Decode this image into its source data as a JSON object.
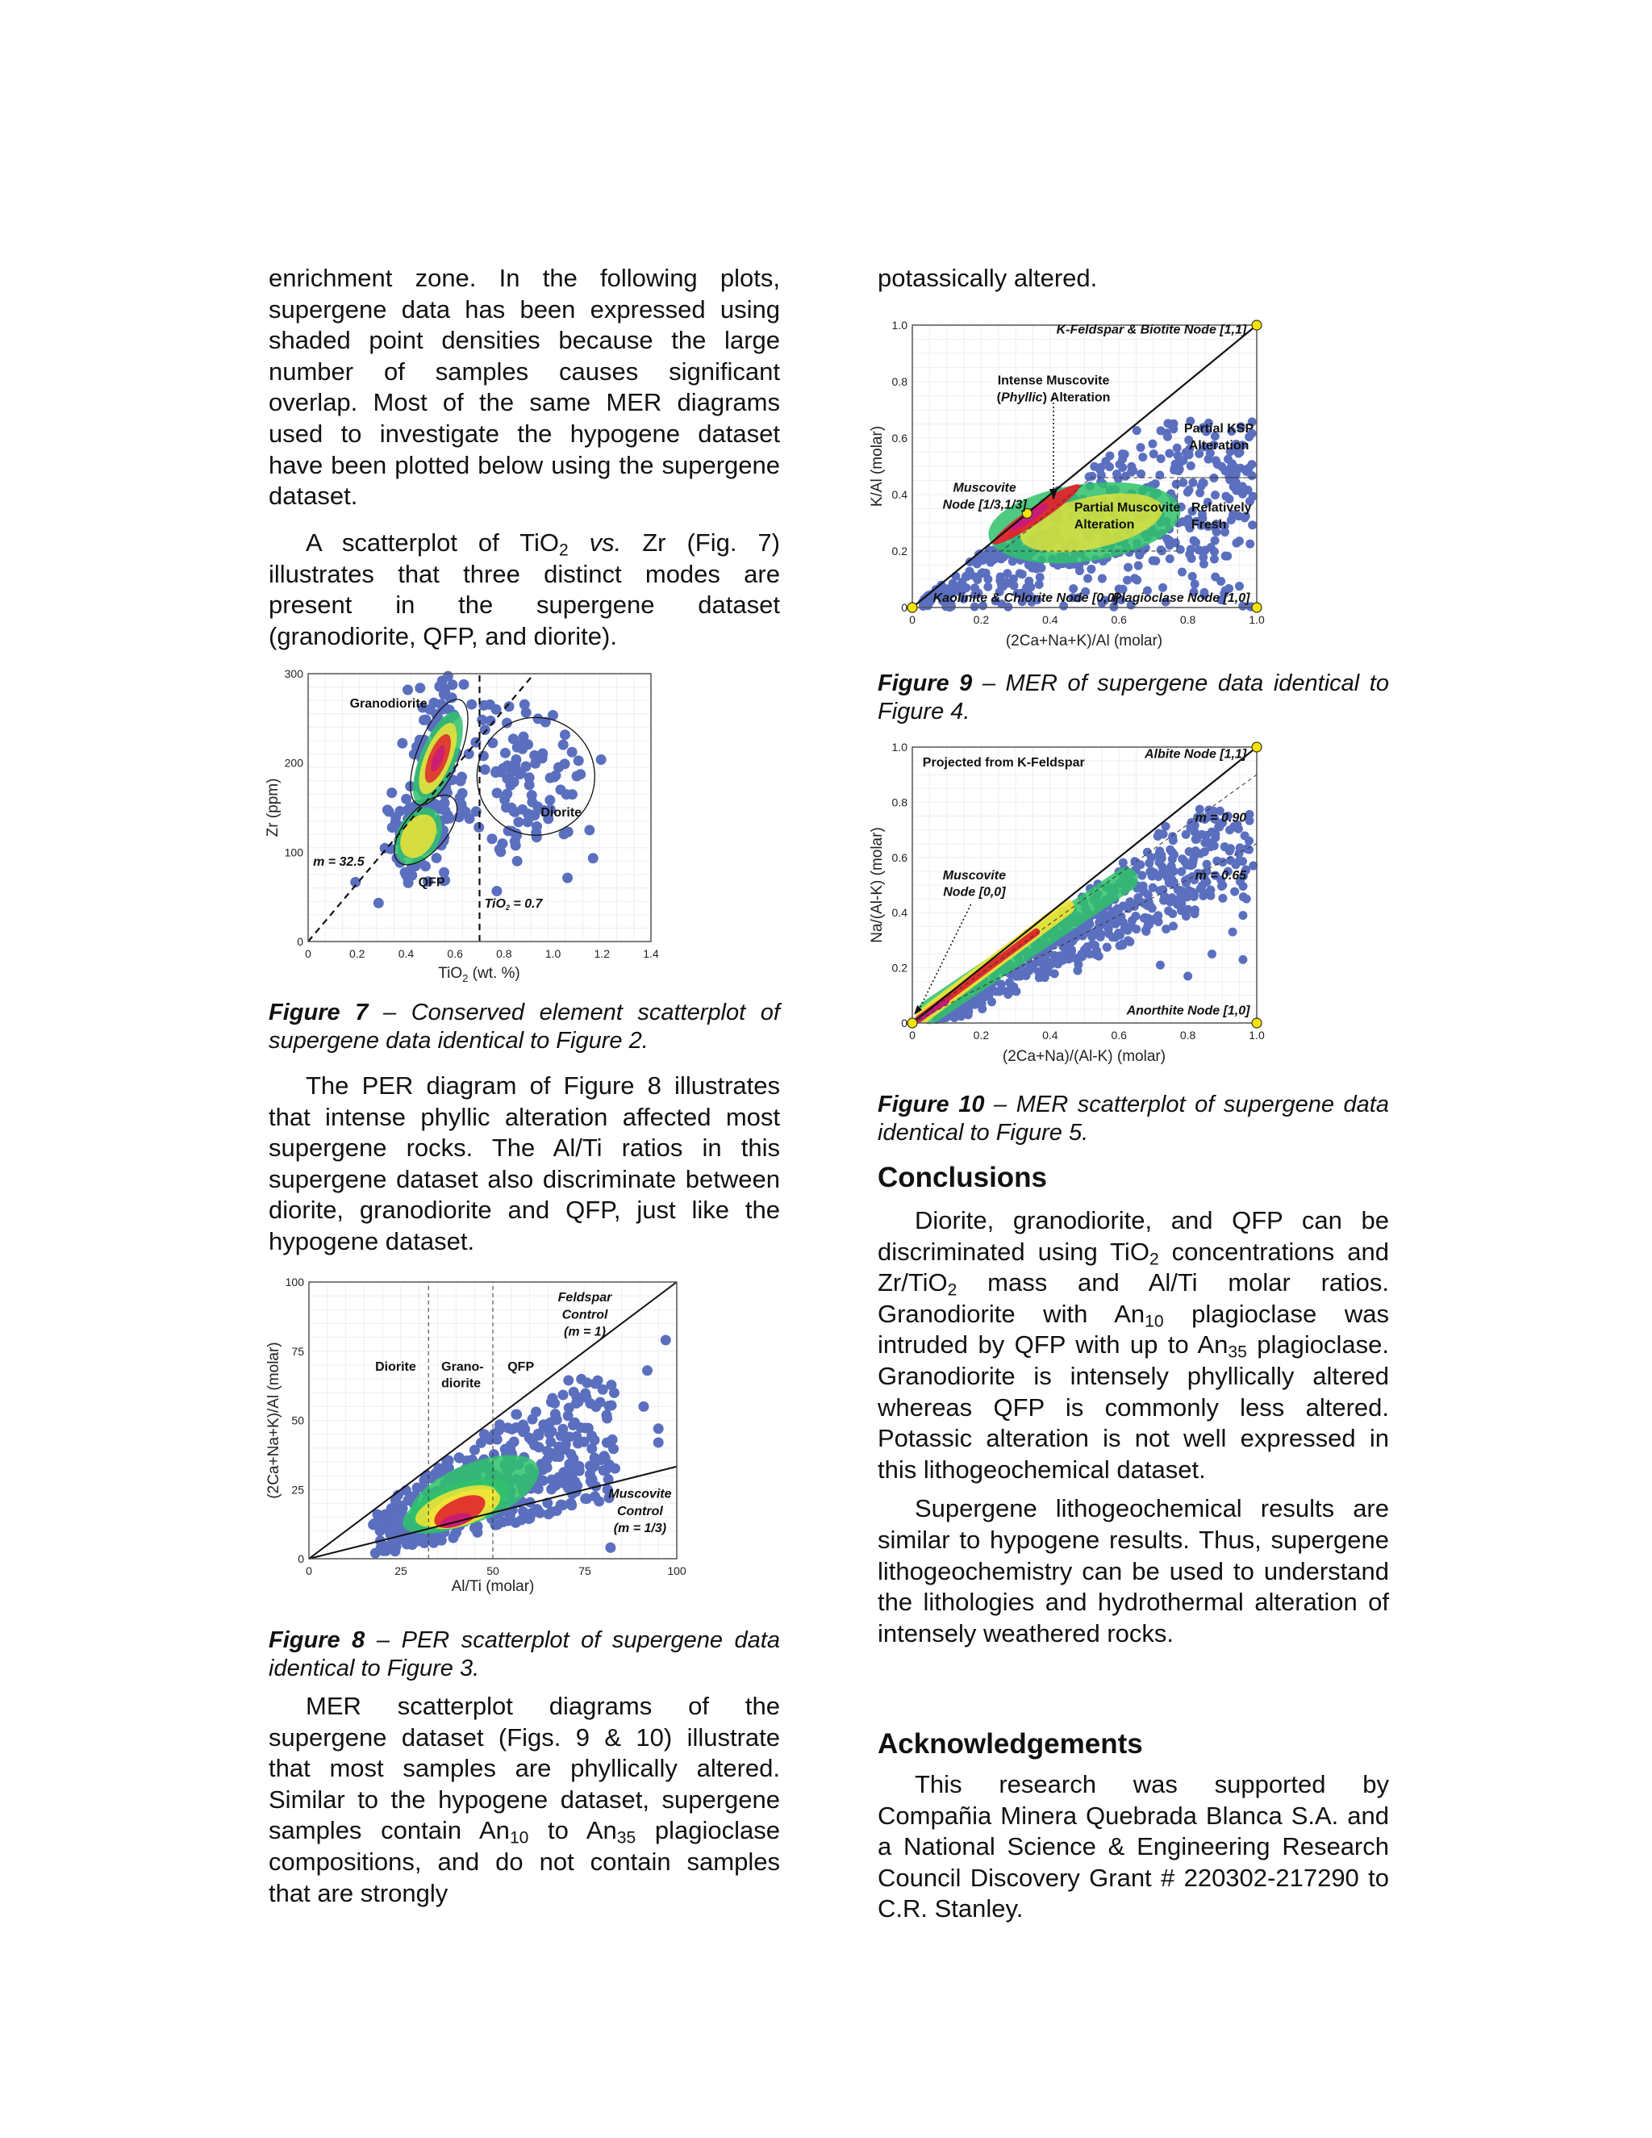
{
  "left_column": {
    "p1": [
      "enrichment zone. In the following plots, supergene data has been expressed using shaded point densities because the large number of samples causes significant overlap. Most of the same MER diagrams used to investigate the hypogene dataset have been plotted below using the supergene dataset."
    ],
    "p2": [
      "A scatterplot of TiO",
      {
        "sub": "2"
      },
      " ",
      {
        "i": "vs."
      },
      " Zr (Fig. 7) illustrates that three distinct modes are present in the supergene dataset (granodiorite, QFP, and diorite)."
    ],
    "fig7_caption": {
      "label": "Figure 7",
      "text": " – Conserved element scatterplot of supergene data identical to Figure 2."
    },
    "p3": [
      "The PER diagram of Figure 8 illustrates that intense phyllic alteration affected most supergene rocks. The Al/Ti ratios in this supergene dataset also discriminate between diorite, granodiorite and QFP, just like the hypogene dataset."
    ],
    "fig8_caption": {
      "label": "Figure 8",
      "text": " – PER scatterplot of supergene data identical to Figure 3."
    },
    "p4": [
      "MER scatterplot diagrams of the supergene dataset (Figs. 9 & 10) illustrate that most samples are phyllically altered. Similar to the hypogene dataset, supergene samples contain An",
      {
        "sub": "10"
      },
      " to An",
      {
        "sub": "35"
      },
      " plagioclase compositions, and do not contain samples that are strongly"
    ]
  },
  "right_column": {
    "p0": [
      "potassically altered."
    ],
    "fig9_caption": {
      "label": "Figure 9",
      "text": " – MER of supergene data identical to Figure 4."
    },
    "fig10_caption": {
      "label": "Figure 10",
      "text": " – MER scatterplot of supergene data identical to Figure 5."
    },
    "conclusions_heading": "Conclusions",
    "c1": [
      "Diorite, granodiorite, and QFP can be discriminated using TiO",
      {
        "sub": "2"
      },
      " concentrations and Zr/TiO",
      {
        "sub": "2"
      },
      " mass and Al/Ti molar ratios. Granodiorite with An",
      {
        "sub": "10"
      },
      " plagioclase was intruded by QFP with up to An",
      {
        "sub": "35"
      },
      " plagioclase. Granodiorite is intensely phyllically altered whereas QFP is commonly less altered. Potassic alteration is not well expressed in this lithogeochemical dataset."
    ],
    "c2": [
      "Supergene lithogeochemical results are similar to hypogene results. Thus, supergene lithogeochemistry can be used to understand the lithologies and hydrothermal alteration of intensely weathered rocks."
    ],
    "ack_heading": "Acknowledgements",
    "a1": [
      "This research was supported by Compañia Minera Quebrada Blanca S.A. and a National Science & Engineering Research Council Discovery Grant # 220302-217290 to C.R. Stanley."
    ]
  },
  "colors": {
    "low": "#5b6fbf",
    "mid": "#2fc26a",
    "high": "#f2e436",
    "peak": "#e0242c",
    "max": "#c81a7a",
    "node": "#f5e400"
  },
  "chart_data": [
    {
      "id": "fig7",
      "type": "scatter",
      "style": "point-density",
      "xlabel": "TiO2 (wt. %)",
      "xlabel_main": "TiO",
      "xlabel_sub": "2",
      "xlabel_rest": " (wt. %)",
      "ylabel": "Zr (ppm)",
      "xlim": [
        0,
        1.4
      ],
      "ylim": [
        0,
        300
      ],
      "xticks": [
        "0",
        "0.2",
        "0.4",
        "0.6",
        "0.8",
        "1.0",
        "1.2",
        "1.4"
      ],
      "xtick_values": [
        0,
        0.2,
        0.4,
        0.6,
        0.8,
        1.0,
        1.2,
        1.4
      ],
      "yticks": [
        "0",
        "100",
        "200",
        "300"
      ],
      "ytick_values": [
        0,
        100,
        200,
        300
      ],
      "grid": true,
      "reference_lines": [
        {
          "type": "line",
          "slope": 32.5,
          "intercept": 0,
          "style": "dashed",
          "label": "m = 32.5"
        },
        {
          "type": "vertical",
          "x": 0.7,
          "style": "dashed",
          "label": "TiO2 = 0.7"
        }
      ],
      "groups": [
        {
          "label": "Granodiorite",
          "center": [
            0.52,
            205
          ],
          "spread": [
            0.06,
            45
          ],
          "density": "peak"
        },
        {
          "label": "QFP",
          "center": [
            0.45,
            120
          ],
          "spread": [
            0.06,
            22
          ],
          "density": "high"
        },
        {
          "label": "Diorite",
          "center": [
            0.87,
            175
          ],
          "spread": [
            0.17,
            45
          ],
          "density": "low"
        }
      ],
      "labels": {
        "granodiorite": "Granodiorite",
        "qfp": "QFP",
        "diorite": "Diorite",
        "slope": "m = 32.5",
        "tio2_main": "TiO",
        "tio2_sub": "2",
        "tio2_rest": " = 0.7"
      }
    },
    {
      "id": "fig8",
      "type": "scatter",
      "style": "point-density",
      "xlabel": "Al/Ti (molar)",
      "ylabel": "(2Ca+Na+K)/Al (molar)",
      "xlim": [
        0,
        100
      ],
      "ylim": [
        0,
        100
      ],
      "xticks": [
        "0",
        "25",
        "50",
        "75",
        "100"
      ],
      "xtick_values": [
        0,
        25,
        50,
        75,
        100
      ],
      "yticks": [
        "0",
        "25",
        "50",
        "75",
        "100"
      ],
      "ytick_values": [
        0,
        25,
        50,
        75,
        100
      ],
      "grid": true,
      "reference_lines": [
        {
          "type": "line",
          "slope": 1,
          "intercept": 0,
          "style": "solid",
          "label": "Feldspar Control (m = 1)"
        },
        {
          "type": "line",
          "slope": 0.3333,
          "intercept": 0,
          "style": "solid",
          "label": "Muscovite Control (m = 1/3)"
        },
        {
          "type": "vertical",
          "x": 32.5,
          "style": "dashed"
        },
        {
          "type": "vertical",
          "x": 50,
          "style": "dashed"
        }
      ],
      "groups": [
        {
          "center": [
            42,
            18
          ],
          "spread": [
            8,
            6
          ],
          "density": "peak"
        },
        {
          "center": [
            55,
            28
          ],
          "spread": [
            16,
            12
          ],
          "density": "low"
        }
      ],
      "labels": {
        "diorite": "Diorite",
        "grano1": "Grano-",
        "grano2": "diorite",
        "qfp": "QFP",
        "feld1": "Feldspar",
        "feld2": "Control",
        "feld3": "(m = 1)",
        "musc1": "Muscovite",
        "musc2": "Control",
        "musc3": "(m = 1/3)"
      }
    },
    {
      "id": "fig9",
      "type": "scatter",
      "style": "point-density",
      "xlabel": "(2Ca+Na+K)/Al (molar)",
      "ylabel": "K/Al (molar)",
      "xlim": [
        0,
        1
      ],
      "ylim": [
        0,
        1
      ],
      "xticks": [
        "0",
        "0.2",
        "0.4",
        "0.6",
        "0.8",
        "1.0"
      ],
      "xtick_values": [
        0,
        0.2,
        0.4,
        0.6,
        0.8,
        1.0
      ],
      "yticks": [
        "0",
        "0.2",
        "0.4",
        "0.6",
        "0.8",
        "1.0"
      ],
      "ytick_values": [
        0,
        0.2,
        0.4,
        0.6,
        0.8,
        1.0
      ],
      "grid": true,
      "nodes": [
        {
          "label": "K-Feldspar & Biotite Node [1,1]",
          "x": 1,
          "y": 1
        },
        {
          "label": "Muscovite Node [1/3,1/3]",
          "x": 0.3333,
          "y": 0.3333
        },
        {
          "label": "Kaolinite & Chlorite Node [0,0]",
          "x": 0,
          "y": 0
        },
        {
          "label": "Plagioclase Node [1,0]",
          "x": 1,
          "y": 0
        }
      ],
      "groups": [
        {
          "center": [
            0.37,
            0.33
          ],
          "spread": [
            0.06,
            0.05
          ],
          "density": "peak"
        },
        {
          "center": [
            0.55,
            0.3
          ],
          "spread": [
            0.14,
            0.08
          ],
          "density": "high"
        },
        {
          "center": [
            0.7,
            0.3
          ],
          "spread": [
            0.16,
            0.13
          ],
          "density": "low"
        }
      ],
      "labels": {
        "kfs": "K-Feldspar & Biotite Node [1,1]",
        "intense1": "Intense Muscovite",
        "intense2a": "(",
        "intense2i": "Phyllic",
        "intense2b": ") Alteration",
        "musc1": "Muscovite",
        "musc2": "Node [1/3,1/3]",
        "partial_ksp1": "Partial KSP",
        "partial_ksp2": "Alteration",
        "partial_musc1": "Partial Muscovite",
        "partial_musc2": "Alteration",
        "fresh1": "Relatively",
        "fresh2": "Fresh",
        "kaol": "Kaolinite & Chlorite Node [0,0]",
        "plag": "Plagioclase Node [1,0]"
      }
    },
    {
      "id": "fig10",
      "type": "scatter",
      "style": "point-density",
      "xlabel": "(2Ca+Na)/(Al-K) (molar)",
      "ylabel": "Na/(Al-K) (molar)",
      "xlim": [
        0,
        1
      ],
      "ylim": [
        0,
        1
      ],
      "xticks": [
        "0",
        "0.2",
        "0.4",
        "0.6",
        "0.8",
        "1.0"
      ],
      "xtick_values": [
        0,
        0.2,
        0.4,
        0.6,
        0.8,
        1.0
      ],
      "yticks": [
        "0",
        "0.2",
        "0.4",
        "0.6",
        "0.8",
        "1.0"
      ],
      "ytick_values": [
        0,
        0.2,
        0.4,
        0.6,
        0.8,
        1.0
      ],
      "grid": true,
      "reference_lines": [
        {
          "type": "line",
          "slope": 1,
          "intercept": 0,
          "style": "solid"
        },
        {
          "type": "line",
          "slope": 0.9,
          "intercept": 0,
          "style": "dashed",
          "label": "m = 0.90"
        },
        {
          "type": "line",
          "slope": 0.65,
          "intercept": 0,
          "style": "dashed",
          "label": "m = 0.65"
        }
      ],
      "nodes": [
        {
          "label": "Albite Node [1,1]",
          "x": 1,
          "y": 1
        },
        {
          "label": "Muscovite Node [0,0]",
          "x": 0,
          "y": 0
        },
        {
          "label": "Anorthite Node [1,0]",
          "x": 1,
          "y": 0
        }
      ],
      "labels": {
        "proj": "Projected from K-Feldspar",
        "albite": "Albite Node [1,1]",
        "m90": "m = 0.90",
        "m65": "m = 0.65",
        "musc1": "Muscovite",
        "musc2": "Node [0,0]",
        "anor": "Anorthite Node [1,0]"
      }
    }
  ]
}
